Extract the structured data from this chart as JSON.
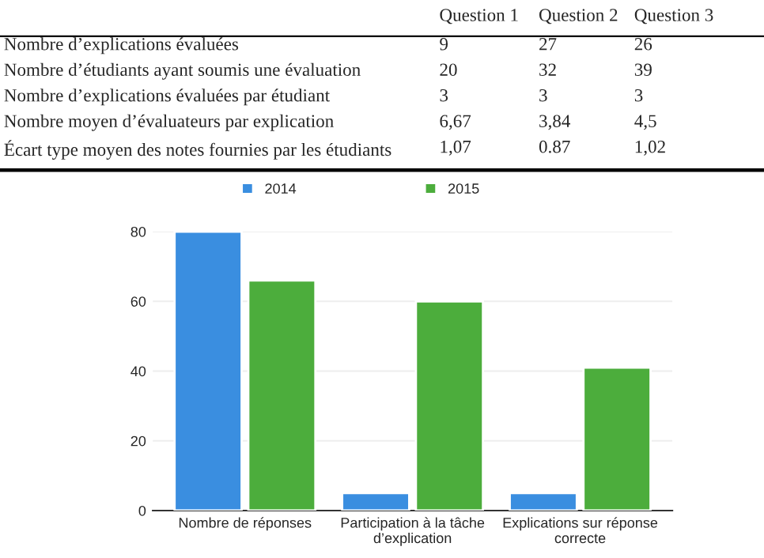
{
  "chart_data": {
    "type": "bar",
    "categories": [
      "Nombre de réponses",
      "Participation à la tâche\nd’explication",
      "Explications sur réponse\ncorrecte"
    ],
    "series": [
      {
        "name": "2014",
        "color": "#3a8ee0",
        "values": [
          80,
          5,
          5
        ]
      },
      {
        "name": "2015",
        "color": "#4cad3c",
        "values": [
          66,
          60,
          41
        ]
      }
    ],
    "ylim": [
      0,
      80
    ],
    "yticks": [
      0,
      20,
      40,
      60,
      80
    ],
    "grid": "y",
    "legend": "top",
    "annotations": [
      "Question 1",
      "Question 2",
      "Question 3",
      "Nombre d’explications évaluées",
      "9",
      "27",
      "26",
      "Nombre d’étudiants ayant soumis une évaluation",
      "20",
      "32",
      "39",
      "Nombre d’explications évaluées par étudiant",
      "3",
      "3",
      "3",
      "Nombre moyen d’évaluateurs par explication",
      "6,67",
      "3,84",
      "4,5",
      "Écart type moyen des notes fournies par les étudiants",
      "1,07",
      "0.87",
      "1,02"
    ]
  }
}
